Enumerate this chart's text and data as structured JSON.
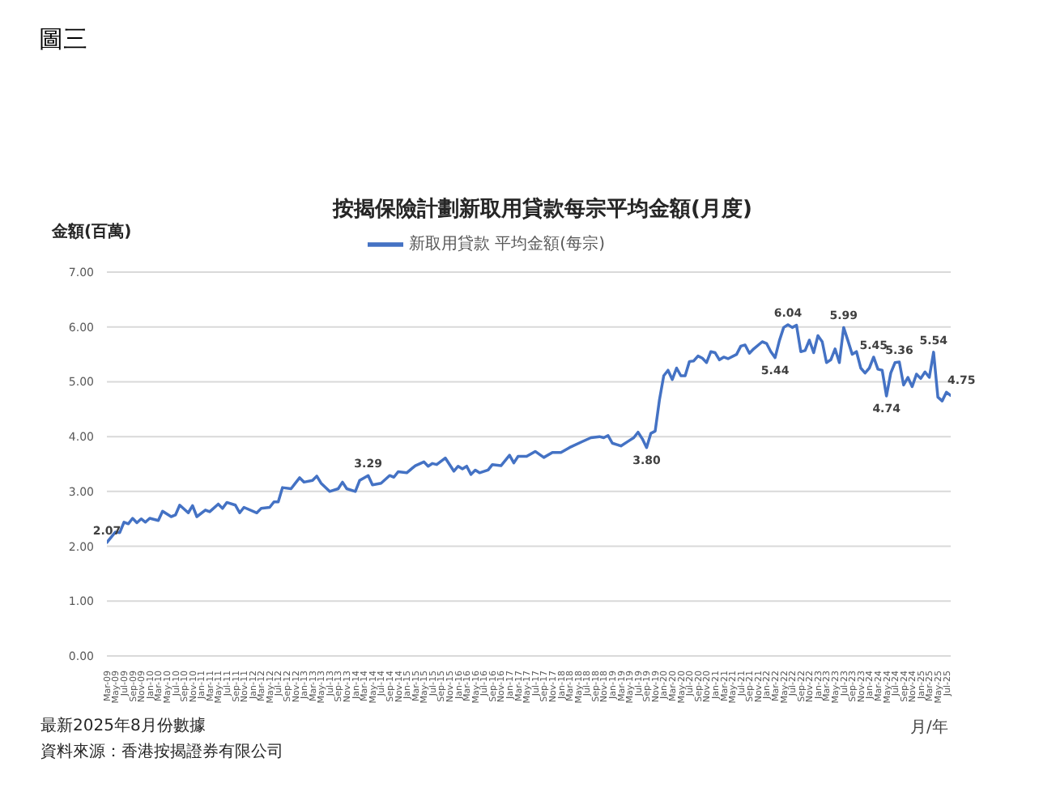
{
  "chart_data": {
    "type": "line",
    "title": "按揭保險計劃新取用貸款每宗平均金額(月度)",
    "xlabel": "月/年",
    "ylabel": "金額(百萬)",
    "annotations": [
      "圖三",
      "最新2025年8月份數據",
      "資料來源：香港按揭證券有限公司"
    ],
    "x": [
      "2009-03",
      "2009-05",
      "2009-06",
      "2009-07",
      "2009-08",
      "2009-09",
      "2009-10",
      "2009-11",
      "2009-12",
      "2010-01",
      "2010-03",
      "2010-04",
      "2010-06",
      "2010-07",
      "2010-08",
      "2010-10",
      "2010-11",
      "2010-12",
      "2011-02",
      "2011-03",
      "2011-05",
      "2011-06",
      "2011-07",
      "2011-09",
      "2011-10",
      "2011-11",
      "2012-02",
      "2012-03",
      "2012-05",
      "2012-06",
      "2012-07",
      "2012-08",
      "2012-10",
      "2012-11",
      "2012-12",
      "2013-01",
      "2013-03",
      "2013-04",
      "2013-05",
      "2013-07",
      "2013-09",
      "2013-10",
      "2013-11",
      "2014-01",
      "2014-02",
      "2014-04",
      "2014-05",
      "2014-07",
      "2014-09",
      "2014-10",
      "2014-11",
      "2015-01",
      "2015-03",
      "2015-05",
      "2015-06",
      "2015-07",
      "2015-08",
      "2015-10",
      "2015-12",
      "2016-01",
      "2016-02",
      "2016-03",
      "2016-04",
      "2016-05",
      "2016-06",
      "2016-08",
      "2016-09",
      "2016-11",
      "2017-01",
      "2017-02",
      "2017-03",
      "2017-05",
      "2017-07",
      "2017-09",
      "2017-11",
      "2018-01",
      "2018-03",
      "2018-06",
      "2018-08",
      "2018-10",
      "2018-11",
      "2018-12",
      "2019-01",
      "2019-03",
      "2019-05",
      "2019-06",
      "2019-07",
      "2019-08",
      "2019-09",
      "2019-10",
      "2019-11",
      "2019-12",
      "2020-01",
      "2020-02",
      "2020-03",
      "2020-04",
      "2020-05",
      "2020-06",
      "2020-07",
      "2020-08",
      "2020-09",
      "2020-10",
      "2020-11",
      "2020-12",
      "2021-01",
      "2021-02",
      "2021-03",
      "2021-04",
      "2021-06",
      "2021-07",
      "2021-08",
      "2021-09",
      "2021-10",
      "2021-12",
      "2022-01",
      "2022-02",
      "2022-03",
      "2022-04",
      "2022-05",
      "2022-06",
      "2022-07",
      "2022-08",
      "2022-09",
      "2022-10",
      "2022-11",
      "2022-12",
      "2023-01",
      "2023-02",
      "2023-03",
      "2023-04",
      "2023-05",
      "2023-06",
      "2023-07",
      "2023-08",
      "2023-09",
      "2023-10",
      "2023-11",
      "2023-12",
      "2024-01",
      "2024-02",
      "2024-03",
      "2024-04",
      "2024-05",
      "2024-06",
      "2024-07",
      "2024-08",
      "2024-09",
      "2024-10",
      "2024-11",
      "2024-12",
      "2025-01",
      "2025-02",
      "2025-03",
      "2025-04",
      "2025-05",
      "2025-06",
      "2025-07",
      "2025-08"
    ],
    "series": [
      {
        "name": "新取用貸款 平均金額(每宗)",
        "color": "#4472c4",
        "values": [
          2.07,
          2.26,
          2.25,
          2.44,
          2.41,
          2.51,
          2.43,
          2.5,
          2.44,
          2.51,
          2.47,
          2.64,
          2.54,
          2.57,
          2.75,
          2.61,
          2.74,
          2.54,
          2.66,
          2.63,
          2.77,
          2.69,
          2.8,
          2.75,
          2.61,
          2.71,
          2.61,
          2.69,
          2.71,
          2.81,
          2.81,
          3.07,
          3.05,
          3.15,
          3.25,
          3.17,
          3.2,
          3.28,
          3.15,
          3.0,
          3.05,
          3.17,
          3.05,
          3.0,
          3.2,
          3.29,
          3.12,
          3.15,
          3.29,
          3.26,
          3.36,
          3.34,
          3.47,
          3.54,
          3.46,
          3.51,
          3.49,
          3.61,
          3.37,
          3.46,
          3.41,
          3.46,
          3.31,
          3.39,
          3.34,
          3.39,
          3.49,
          3.47,
          3.66,
          3.52,
          3.64,
          3.64,
          3.73,
          3.62,
          3.71,
          3.71,
          3.8,
          3.91,
          3.98,
          4.0,
          3.98,
          4.02,
          3.88,
          3.83,
          3.93,
          3.98,
          4.08,
          3.96,
          3.8,
          4.06,
          4.1,
          4.67,
          5.11,
          5.21,
          5.04,
          5.25,
          5.11,
          5.11,
          5.37,
          5.38,
          5.47,
          5.43,
          5.35,
          5.55,
          5.53,
          5.4,
          5.45,
          5.42,
          5.5,
          5.65,
          5.67,
          5.52,
          5.6,
          5.73,
          5.7,
          5.55,
          5.44,
          5.75,
          5.99,
          6.04,
          5.99,
          6.03,
          5.55,
          5.57,
          5.76,
          5.53,
          5.84,
          5.73,
          5.35,
          5.4,
          5.6,
          5.35,
          5.99,
          5.75,
          5.5,
          5.55,
          5.25,
          5.16,
          5.25,
          5.45,
          5.23,
          5.21,
          4.74,
          5.16,
          5.35,
          5.36,
          4.94,
          5.08,
          4.91,
          5.14,
          5.06,
          5.18,
          5.08,
          5.54,
          4.72,
          4.65,
          4.81,
          4.75
        ],
        "value_labels": [
          "2.07",
          null,
          null,
          null,
          null,
          null,
          null,
          null,
          null,
          null,
          null,
          null,
          null,
          null,
          null,
          null,
          null,
          null,
          null,
          null,
          null,
          null,
          null,
          null,
          null,
          null,
          null,
          null,
          null,
          null,
          null,
          null,
          null,
          null,
          null,
          null,
          null,
          null,
          null,
          null,
          null,
          null,
          null,
          null,
          null,
          "3.29",
          null,
          null,
          null,
          null,
          null,
          null,
          null,
          null,
          null,
          null,
          null,
          null,
          null,
          null,
          null,
          null,
          null,
          null,
          null,
          null,
          null,
          null,
          null,
          null,
          null,
          null,
          null,
          null,
          null,
          null,
          null,
          null,
          null,
          null,
          null,
          null,
          null,
          null,
          null,
          null,
          null,
          null,
          "3.80",
          null,
          null,
          null,
          null,
          null,
          null,
          null,
          null,
          null,
          null,
          null,
          null,
          null,
          null,
          null,
          null,
          null,
          null,
          null,
          null,
          null,
          null,
          null,
          null,
          null,
          null,
          null,
          "5.44",
          null,
          null,
          "6.04",
          null,
          null,
          null,
          null,
          null,
          null,
          null,
          null,
          null,
          null,
          null,
          null,
          "5.99",
          null,
          null,
          null,
          null,
          null,
          null,
          "5.45",
          null,
          null,
          "4.74",
          null,
          null,
          "5.36",
          null,
          null,
          null,
          null,
          null,
          null,
          null,
          "5.54",
          null,
          null,
          null,
          "4.75"
        ]
      }
    ],
    "xlim": [
      "2009-03",
      "2025-08"
    ],
    "xticks": [
      {
        "value": "2009-03",
        "label": "Mar-09"
      },
      {
        "value": "2009-05",
        "label": "May-09"
      },
      {
        "value": "2009-07",
        "label": "Jul-09"
      },
      {
        "value": "2009-09",
        "label": "Sep-09"
      },
      {
        "value": "2009-11",
        "label": "Nov-09"
      },
      {
        "value": "2010-01",
        "label": "Jan-10"
      },
      {
        "value": "2010-03",
        "label": "Mar-10"
      },
      {
        "value": "2010-05",
        "label": "May-10"
      },
      {
        "value": "2010-07",
        "label": "Jul-10"
      },
      {
        "value": "2010-09",
        "label": "Sep-10"
      },
      {
        "value": "2010-11",
        "label": "Nov-10"
      },
      {
        "value": "2011-01",
        "label": "Jan-11"
      },
      {
        "value": "2011-03",
        "label": "Mar-11"
      },
      {
        "value": "2011-05",
        "label": "May-11"
      },
      {
        "value": "2011-07",
        "label": "Jul-11"
      },
      {
        "value": "2011-09",
        "label": "Sep-11"
      },
      {
        "value": "2011-11",
        "label": "Nov-11"
      },
      {
        "value": "2012-01",
        "label": "Jan-12"
      },
      {
        "value": "2012-03",
        "label": "Mar-12"
      },
      {
        "value": "2012-05",
        "label": "May-12"
      },
      {
        "value": "2012-07",
        "label": "Jul-12"
      },
      {
        "value": "2012-09",
        "label": "Sep-12"
      },
      {
        "value": "2012-11",
        "label": "Nov-12"
      },
      {
        "value": "2013-01",
        "label": "Jan-13"
      },
      {
        "value": "2013-03",
        "label": "Mar-13"
      },
      {
        "value": "2013-05",
        "label": "May-13"
      },
      {
        "value": "2013-07",
        "label": "Jul-13"
      },
      {
        "value": "2013-09",
        "label": "Sep-13"
      },
      {
        "value": "2013-11",
        "label": "Nov-13"
      },
      {
        "value": "2014-01",
        "label": "Jan-14"
      },
      {
        "value": "2014-03",
        "label": "Mar-14"
      },
      {
        "value": "2014-05",
        "label": "May-14"
      },
      {
        "value": "2014-07",
        "label": "Jul-14"
      },
      {
        "value": "2014-09",
        "label": "Sep-14"
      },
      {
        "value": "2014-11",
        "label": "Nov-14"
      },
      {
        "value": "2015-01",
        "label": "Jan-15"
      },
      {
        "value": "2015-03",
        "label": "Mar-15"
      },
      {
        "value": "2015-05",
        "label": "May-15"
      },
      {
        "value": "2015-07",
        "label": "Jul-15"
      },
      {
        "value": "2015-09",
        "label": "Sep-15"
      },
      {
        "value": "2015-11",
        "label": "Nov-15"
      },
      {
        "value": "2016-01",
        "label": "Jan-16"
      },
      {
        "value": "2016-03",
        "label": "Mar-16"
      },
      {
        "value": "2016-05",
        "label": "May-16"
      },
      {
        "value": "2016-07",
        "label": "Jul-16"
      },
      {
        "value": "2016-09",
        "label": "Sep-16"
      },
      {
        "value": "2016-11",
        "label": "Nov-16"
      },
      {
        "value": "2017-01",
        "label": "Jan-17"
      },
      {
        "value": "2017-03",
        "label": "Mar-17"
      },
      {
        "value": "2017-05",
        "label": "May-17"
      },
      {
        "value": "2017-07",
        "label": "Jul-17"
      },
      {
        "value": "2017-09",
        "label": "Sep-17"
      },
      {
        "value": "2017-11",
        "label": "Nov-17"
      },
      {
        "value": "2018-01",
        "label": "Jan-18"
      },
      {
        "value": "2018-03",
        "label": "Mar-18"
      },
      {
        "value": "2018-05",
        "label": "May-18"
      },
      {
        "value": "2018-07",
        "label": "Jul-18"
      },
      {
        "value": "2018-09",
        "label": "Sep-18"
      },
      {
        "value": "2018-11",
        "label": "Nov-18"
      },
      {
        "value": "2019-01",
        "label": "Jan-19"
      },
      {
        "value": "2019-03",
        "label": "Mar-19"
      },
      {
        "value": "2019-05",
        "label": "May-19"
      },
      {
        "value": "2019-07",
        "label": "Jul-19"
      },
      {
        "value": "2019-09",
        "label": "Sep-19"
      },
      {
        "value": "2019-11",
        "label": "Nov-19"
      },
      {
        "value": "2020-01",
        "label": "Jan-20"
      },
      {
        "value": "2020-03",
        "label": "Mar-20"
      },
      {
        "value": "2020-05",
        "label": "May-20"
      },
      {
        "value": "2020-07",
        "label": "Jul-20"
      },
      {
        "value": "2020-09",
        "label": "Sep-20"
      },
      {
        "value": "2020-11",
        "label": "Nov-20"
      },
      {
        "value": "2021-01",
        "label": "Jan-21"
      },
      {
        "value": "2021-03",
        "label": "Mar-21"
      },
      {
        "value": "2021-05",
        "label": "May-21"
      },
      {
        "value": "2021-07",
        "label": "Jul-21"
      },
      {
        "value": "2021-09",
        "label": "Sep-21"
      },
      {
        "value": "2021-11",
        "label": "Nov-21"
      },
      {
        "value": "2022-01",
        "label": "Jan-22"
      },
      {
        "value": "2022-03",
        "label": "Mar-22"
      },
      {
        "value": "2022-05",
        "label": "May-22"
      },
      {
        "value": "2022-07",
        "label": "Jul-22"
      },
      {
        "value": "2022-09",
        "label": "Sep-22"
      },
      {
        "value": "2022-11",
        "label": "Nov-22"
      },
      {
        "value": "2023-01",
        "label": "Jan-23"
      },
      {
        "value": "2023-03",
        "label": "Mar-23"
      },
      {
        "value": "2023-05",
        "label": "May-23"
      },
      {
        "value": "2023-07",
        "label": "Jul-23"
      },
      {
        "value": "2023-09",
        "label": "Sep-23"
      },
      {
        "value": "2023-11",
        "label": "Nov-23"
      },
      {
        "value": "2024-01",
        "label": "Jan-24"
      },
      {
        "value": "2024-03",
        "label": "Mar-24"
      },
      {
        "value": "2024-05",
        "label": "May-24"
      },
      {
        "value": "2024-07",
        "label": "Jul-24"
      },
      {
        "value": "2024-09",
        "label": "Sep-24"
      },
      {
        "value": "2024-11",
        "label": "Nov-24"
      },
      {
        "value": "2025-01",
        "label": "Jan-25"
      },
      {
        "value": "2025-03",
        "label": "Mar-25"
      },
      {
        "value": "2025-05",
        "label": "May-25"
      },
      {
        "value": "2025-07",
        "label": "Jul-25"
      }
    ],
    "ylim": [
      0,
      7
    ],
    "yticks": [
      {
        "value": 0,
        "label": "0.00"
      },
      {
        "value": 1,
        "label": "1.00"
      },
      {
        "value": 2,
        "label": "2.00"
      },
      {
        "value": 3,
        "label": "3.00"
      },
      {
        "value": 4,
        "label": "4.00"
      },
      {
        "value": 5,
        "label": "5.00"
      },
      {
        "value": 6,
        "label": "6.00"
      },
      {
        "value": 7,
        "label": "7.00"
      }
    ],
    "grid": "y",
    "legend": "top"
  }
}
